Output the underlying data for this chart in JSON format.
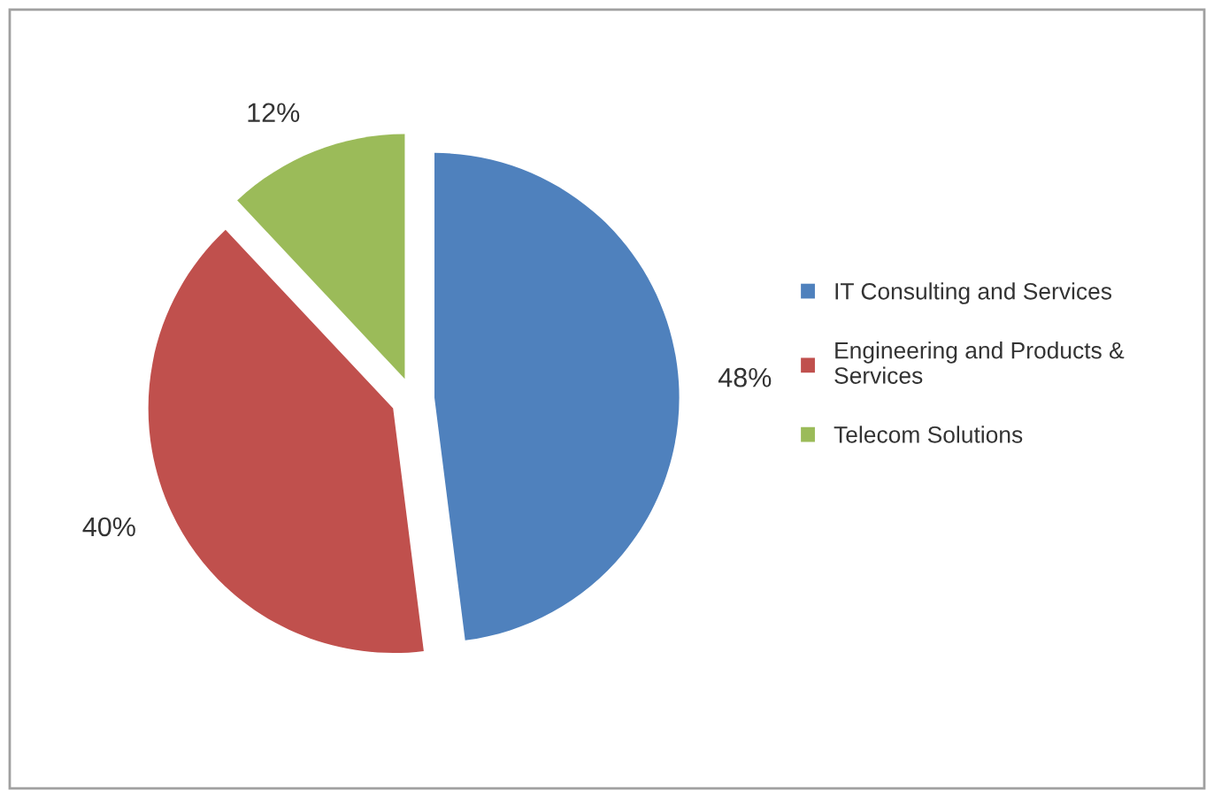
{
  "chart_data": {
    "type": "pie",
    "categories": [
      "IT Consulting and Services",
      "Engineering and Products & Services",
      "Telecom Solutions"
    ],
    "values": [
      48,
      40,
      12
    ],
    "colors": [
      "#4f81bd",
      "#c0504d",
      "#9bbb59"
    ],
    "value_labels": [
      "48%",
      "40%",
      "12%"
    ],
    "legend": "right"
  }
}
